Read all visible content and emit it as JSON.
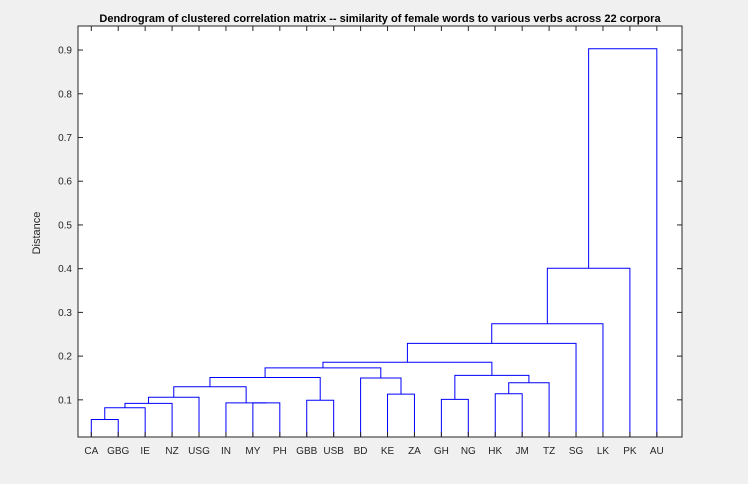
{
  "chart_data": {
    "type": "dendrogram",
    "title": "Dendrogram of clustered correlation matrix -- similarity of female words to various verbs across 22 corpora",
    "xlabel": "",
    "ylabel": "Distance",
    "leaves": [
      "CA",
      "GBG",
      "IE",
      "NZ",
      "USG",
      "IN",
      "MY",
      "PH",
      "GBB",
      "USB",
      "BD",
      "KE",
      "ZA",
      "GH",
      "NG",
      "HK",
      "JM",
      "TZ",
      "SG",
      "LK",
      "PK",
      "AU"
    ],
    "y_ticks": [
      0.1,
      0.2,
      0.3,
      0.4,
      0.5,
      0.6,
      0.7,
      0.8,
      0.9
    ],
    "y_tick_labels": [
      "0.1",
      "0.2",
      "0.3",
      "0.4",
      "0.5",
      "0.6",
      "0.7",
      "0.8",
      "0.9"
    ],
    "ylim": [
      0.015,
      0.955
    ],
    "grid": false,
    "line_color": "#0000ff",
    "merges": [
      {
        "a": "CA",
        "b": "GBG",
        "distance": 0.055
      },
      {
        "a": "CA+GBG",
        "b": "IE",
        "distance": 0.082
      },
      {
        "a": "CA+GBG+IE",
        "b": "NZ",
        "distance": 0.092
      },
      {
        "a": "CA+GBG+IE+NZ",
        "b": "USG",
        "distance": 0.106
      },
      {
        "a": "MY",
        "b": "PH",
        "distance": 0.093
      },
      {
        "a": "IN",
        "b": "MY+PH",
        "distance": 0.093
      },
      {
        "a": "CA..USG",
        "b": "IN+MY+PH",
        "distance": 0.13
      },
      {
        "a": "GBB",
        "b": "USB",
        "distance": 0.099
      },
      {
        "a": "CA..PH",
        "b": "GBB+USB",
        "distance": 0.151
      },
      {
        "a": "KE",
        "b": "ZA",
        "distance": 0.113
      },
      {
        "a": "BD",
        "b": "KE+ZA",
        "distance": 0.15
      },
      {
        "a": "CA..USB",
        "b": "BD+KE+ZA",
        "distance": 0.173
      },
      {
        "a": "GH",
        "b": "NG",
        "distance": 0.101
      },
      {
        "a": "HK",
        "b": "JM",
        "distance": 0.114
      },
      {
        "a": "HK+JM",
        "b": "TZ",
        "distance": 0.139
      },
      {
        "a": "HK+JM+TZ",
        "b": "GH+NG",
        "distance": 0.156
      },
      {
        "a": "CA..ZA",
        "b": "GH..TZ",
        "distance": 0.186
      },
      {
        "a": "CA..TZ",
        "b": "SG",
        "distance": 0.229
      },
      {
        "a": "CA..SG",
        "b": "LK",
        "distance": 0.274
      },
      {
        "a": "CA..LK",
        "b": "PK",
        "distance": 0.401
      },
      {
        "a": "CA..PK",
        "b": "AU",
        "distance": 0.903
      }
    ]
  }
}
